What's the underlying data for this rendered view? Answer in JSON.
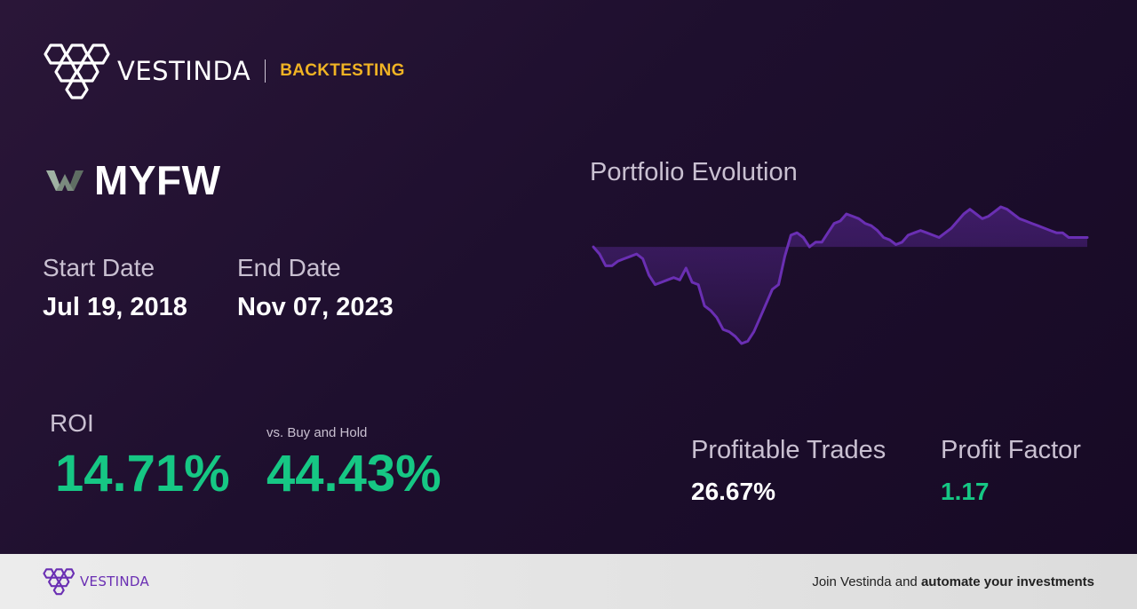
{
  "brand": {
    "name": "VESTINDA",
    "tag": "BACKTESTING"
  },
  "ticker": {
    "symbol": "MYFW",
    "logo_icon": "company-w-logo-icon"
  },
  "dates": {
    "start_label": "Start Date",
    "start_value": "Jul 19, 2018",
    "end_label": "End Date",
    "end_value": "Nov 07, 2023"
  },
  "roi": {
    "label": "ROI",
    "value": "14.71%",
    "bh_label": "vs. Buy and Hold",
    "bh_value": "44.43%"
  },
  "stats": {
    "profitable_label": "Profitable Trades",
    "profitable_value": "26.67%",
    "factor_label": "Profit Factor",
    "factor_value": "1.17"
  },
  "colors": {
    "accent": "#f0b324",
    "positive": "#16c784",
    "line": "#6a2fb3",
    "brand_purple": "#6a2fb3"
  },
  "footer": {
    "brand": "VESTINDA",
    "cta_prefix": "Join Vestinda and",
    "cta_bold": "automate your investments"
  },
  "chart_data": {
    "type": "line",
    "title": "Portfolio Evolution",
    "baseline": 0,
    "x": [
      0,
      1,
      2,
      3,
      4,
      5,
      6,
      7,
      8,
      9,
      10,
      11,
      12,
      13,
      14,
      15,
      16,
      17,
      18,
      19,
      20,
      21,
      22,
      23,
      24,
      25,
      26,
      27,
      28,
      29,
      30,
      31,
      32,
      33,
      34,
      35,
      36,
      37,
      38,
      39,
      40,
      41,
      42,
      43,
      44,
      45,
      46,
      47,
      48,
      49,
      50,
      51,
      52,
      53,
      54,
      55,
      56,
      57,
      58,
      59,
      60,
      61,
      62,
      63,
      64,
      65,
      66,
      67,
      68,
      69,
      70,
      71,
      72,
      73,
      74,
      75,
      76,
      77,
      78,
      79,
      80
    ],
    "y": [
      0,
      -3,
      -8,
      -8,
      -6,
      -5,
      -4,
      -3,
      -5,
      -12,
      -16,
      -15,
      -14,
      -13,
      -14,
      -9,
      -15,
      -16,
      -25,
      -27,
      -30,
      -35,
      -36,
      -38,
      -41,
      -40,
      -36,
      -30,
      -24,
      -18,
      -16,
      -4,
      5,
      6,
      4,
      0,
      2,
      2,
      6,
      10,
      11,
      14,
      13,
      12,
      10,
      9,
      7,
      4,
      3,
      1,
      2,
      5,
      6,
      7,
      6,
      5,
      4,
      6,
      8,
      11,
      14,
      16,
      14,
      12,
      13,
      15,
      17,
      16,
      14,
      12,
      11,
      10,
      9,
      8,
      7,
      6,
      6,
      4,
      4,
      4,
      4
    ]
  }
}
